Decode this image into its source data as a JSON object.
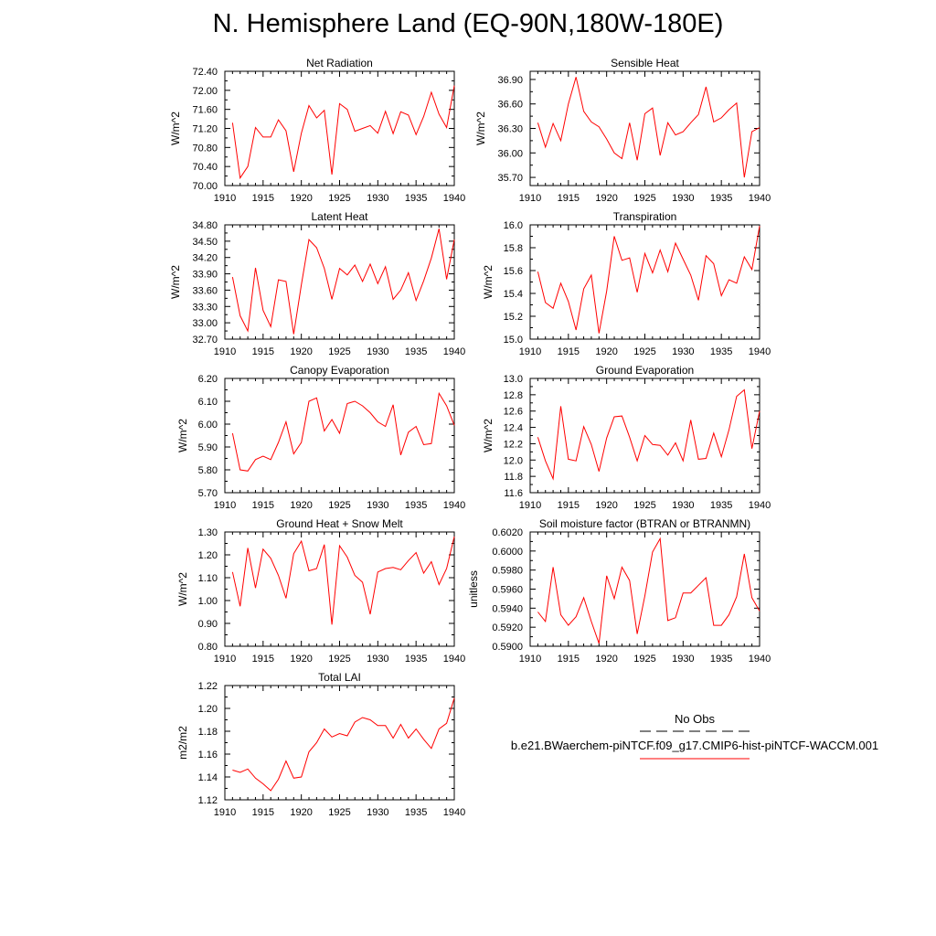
{
  "page": {
    "title": "N. Hemisphere Land (EQ-90N,180W-180E)"
  },
  "legend": {
    "obs_label": "No Obs",
    "case_label": "b.e21.BWaerchem-piNTCF.f09_g17.CMIP6-hist-piNTCF-WACCM.001",
    "obs_color": "#000000",
    "case_color": "#ff0000"
  },
  "chart_data": [
    {
      "type": "line",
      "title": "Net Radiation",
      "ylabel": "W/m^2",
      "xlabel": "",
      "xlim": [
        1910,
        1940
      ],
      "ylim": [
        70.0,
        72.4
      ],
      "xticks": [
        1910,
        1915,
        1920,
        1925,
        1930,
        1935,
        1940
      ],
      "yticks": [
        "70.00",
        "70.40",
        "70.80",
        "71.20",
        "71.60",
        "72.00",
        "72.40"
      ],
      "series": [
        {
          "color": "#ff0000",
          "x": [
            1911,
            1912,
            1913,
            1914,
            1915,
            1916,
            1917,
            1918,
            1919,
            1920,
            1921,
            1922,
            1923,
            1924,
            1925,
            1926,
            1927,
            1928,
            1929,
            1930,
            1931,
            1932,
            1933,
            1934,
            1935,
            1936,
            1937,
            1938,
            1939,
            1940
          ],
          "values": [
            71.32,
            70.16,
            70.4,
            71.22,
            71.02,
            71.02,
            71.38,
            71.15,
            70.29,
            71.1,
            71.68,
            71.42,
            71.58,
            70.23,
            71.72,
            71.6,
            71.14,
            71.2,
            71.26,
            71.1,
            71.56,
            71.09,
            71.55,
            71.48,
            71.07,
            71.45,
            71.96,
            71.5,
            71.22,
            72.1
          ]
        }
      ]
    },
    {
      "type": "line",
      "title": "Sensible Heat",
      "ylabel": "W/m^2",
      "xlabel": "",
      "xlim": [
        1910,
        1940
      ],
      "ylim": [
        35.6,
        37.0
      ],
      "xticks": [
        1910,
        1915,
        1920,
        1925,
        1930,
        1935,
        1940
      ],
      "yticks": [
        "35.70",
        "36.00",
        "36.30",
        "36.60",
        "36.90"
      ],
      "series": [
        {
          "color": "#ff0000",
          "x": [
            1911,
            1912,
            1913,
            1914,
            1915,
            1916,
            1917,
            1918,
            1919,
            1920,
            1921,
            1922,
            1923,
            1924,
            1925,
            1926,
            1927,
            1928,
            1929,
            1930,
            1931,
            1932,
            1933,
            1934,
            1935,
            1936,
            1937,
            1938,
            1939,
            1940
          ],
          "values": [
            36.37,
            36.07,
            36.36,
            36.15,
            36.6,
            36.93,
            36.51,
            36.38,
            36.32,
            36.17,
            36.0,
            35.93,
            36.37,
            35.91,
            36.48,
            36.55,
            35.97,
            36.37,
            36.22,
            36.26,
            36.37,
            36.47,
            36.81,
            36.38,
            36.43,
            36.53,
            36.61,
            35.7,
            36.26,
            36.31
          ]
        }
      ]
    },
    {
      "type": "line",
      "title": "Latent Heat",
      "ylabel": "W/m^2",
      "xlabel": "",
      "xlim": [
        1910,
        1940
      ],
      "ylim": [
        32.7,
        34.8
      ],
      "xticks": [
        1910,
        1915,
        1920,
        1925,
        1930,
        1935,
        1940
      ],
      "yticks": [
        "32.70",
        "33.00",
        "33.30",
        "33.60",
        "33.90",
        "34.20",
        "34.50",
        "34.80"
      ],
      "series": [
        {
          "color": "#ff0000",
          "x": [
            1911,
            1912,
            1913,
            1914,
            1915,
            1916,
            1917,
            1918,
            1919,
            1920,
            1921,
            1922,
            1923,
            1924,
            1925,
            1926,
            1927,
            1928,
            1929,
            1930,
            1931,
            1932,
            1933,
            1934,
            1935,
            1936,
            1937,
            1938,
            1939,
            1940
          ],
          "values": [
            33.84,
            33.13,
            32.85,
            34.01,
            33.23,
            32.93,
            33.79,
            33.76,
            32.79,
            33.7,
            34.53,
            34.38,
            34.0,
            33.43,
            34.0,
            33.88,
            34.06,
            33.76,
            34.08,
            33.72,
            34.03,
            33.43,
            33.6,
            33.92,
            33.41,
            33.77,
            34.19,
            34.73,
            33.8,
            34.53
          ]
        }
      ]
    },
    {
      "type": "line",
      "title": "Transpiration",
      "ylabel": "W/m^2",
      "xlabel": "",
      "xlim": [
        1910,
        1940
      ],
      "ylim": [
        15.0,
        16.0
      ],
      "xticks": [
        1910,
        1915,
        1920,
        1925,
        1930,
        1935,
        1940
      ],
      "yticks": [
        "15.0",
        "15.2",
        "15.4",
        "15.6",
        "15.8",
        "16.0"
      ],
      "series": [
        {
          "color": "#ff0000",
          "x": [
            1911,
            1912,
            1913,
            1914,
            1915,
            1916,
            1917,
            1918,
            1919,
            1920,
            1921,
            1922,
            1923,
            1924,
            1925,
            1926,
            1927,
            1928,
            1929,
            1930,
            1931,
            1932,
            1933,
            1934,
            1935,
            1936,
            1937,
            1938,
            1939,
            1940
          ],
          "values": [
            15.59,
            15.32,
            15.27,
            15.49,
            15.33,
            15.08,
            15.44,
            15.56,
            15.05,
            15.42,
            15.9,
            15.69,
            15.71,
            15.41,
            15.75,
            15.58,
            15.78,
            15.59,
            15.84,
            15.7,
            15.56,
            15.34,
            15.73,
            15.66,
            15.38,
            15.52,
            15.49,
            15.72,
            15.61,
            15.99
          ]
        }
      ]
    },
    {
      "type": "line",
      "title": "Canopy Evaporation",
      "ylabel": "W/m^2",
      "xlabel": "",
      "xlim": [
        1910,
        1940
      ],
      "ylim": [
        5.7,
        6.2
      ],
      "xticks": [
        1910,
        1915,
        1920,
        1925,
        1930,
        1935,
        1940
      ],
      "yticks": [
        "5.70",
        "5.80",
        "5.90",
        "6.00",
        "6.10",
        "6.20"
      ],
      "series": [
        {
          "color": "#ff0000",
          "x": [
            1911,
            1912,
            1913,
            1914,
            1915,
            1916,
            1917,
            1918,
            1919,
            1920,
            1921,
            1922,
            1923,
            1924,
            1925,
            1926,
            1927,
            1928,
            1929,
            1930,
            1931,
            1932,
            1933,
            1934,
            1935,
            1936,
            1937,
            1938,
            1939,
            1940
          ],
          "values": [
            5.96,
            5.8,
            5.795,
            5.845,
            5.86,
            5.845,
            5.92,
            6.01,
            5.87,
            5.92,
            6.1,
            6.115,
            5.97,
            6.02,
            5.96,
            6.09,
            6.1,
            6.08,
            6.05,
            6.01,
            5.99,
            6.085,
            5.865,
            5.965,
            5.99,
            5.91,
            5.915,
            6.135,
            6.08,
            5.995
          ]
        }
      ]
    },
    {
      "type": "line",
      "title": "Ground Evaporation",
      "ylabel": "W/m^2",
      "xlabel": "",
      "xlim": [
        1910,
        1940
      ],
      "ylim": [
        11.6,
        13.0
      ],
      "xticks": [
        1910,
        1915,
        1920,
        1925,
        1930,
        1935,
        1940
      ],
      "yticks": [
        "11.6",
        "11.8",
        "12.0",
        "12.2",
        "12.4",
        "12.6",
        "12.8",
        "13.0"
      ],
      "series": [
        {
          "color": "#ff0000",
          "x": [
            1911,
            1912,
            1913,
            1914,
            1915,
            1916,
            1917,
            1918,
            1919,
            1920,
            1921,
            1922,
            1923,
            1924,
            1925,
            1926,
            1927,
            1928,
            1929,
            1930,
            1931,
            1932,
            1933,
            1934,
            1935,
            1936,
            1937,
            1938,
            1939,
            1940
          ],
          "values": [
            12.28,
            11.99,
            11.77,
            12.66,
            12.01,
            11.99,
            12.41,
            12.19,
            11.86,
            12.27,
            12.53,
            12.54,
            12.28,
            11.99,
            12.3,
            12.19,
            12.18,
            12.06,
            12.21,
            11.99,
            12.49,
            12.01,
            12.02,
            12.33,
            12.04,
            12.37,
            12.78,
            12.86,
            12.14,
            12.6
          ]
        }
      ]
    },
    {
      "type": "line",
      "title": "Ground Heat + Snow Melt",
      "ylabel": "W/m^2",
      "xlabel": "",
      "xlim": [
        1910,
        1940
      ],
      "ylim": [
        0.8,
        1.3
      ],
      "xticks": [
        1910,
        1915,
        1920,
        1925,
        1930,
        1935,
        1940
      ],
      "yticks": [
        "0.80",
        "0.90",
        "1.00",
        "1.10",
        "1.20",
        "1.30"
      ],
      "series": [
        {
          "color": "#ff0000",
          "x": [
            1911,
            1912,
            1913,
            1914,
            1915,
            1916,
            1917,
            1918,
            1919,
            1920,
            1921,
            1922,
            1923,
            1924,
            1925,
            1926,
            1927,
            1928,
            1929,
            1930,
            1931,
            1932,
            1933,
            1934,
            1935,
            1936,
            1937,
            1938,
            1939,
            1940
          ],
          "values": [
            1.125,
            0.975,
            1.23,
            1.055,
            1.225,
            1.185,
            1.11,
            1.01,
            1.205,
            1.26,
            1.13,
            1.14,
            1.245,
            0.895,
            1.24,
            1.19,
            1.11,
            1.08,
            0.94,
            1.125,
            1.14,
            1.145,
            1.135,
            1.175,
            1.21,
            1.12,
            1.17,
            1.07,
            1.14,
            1.28
          ]
        }
      ]
    },
    {
      "type": "line",
      "title": "Soil moisture factor (BTRAN or BTRANMN)",
      "ylabel": "unitless",
      "xlabel": "",
      "xlim": [
        1910,
        1940
      ],
      "ylim": [
        0.59,
        0.602
      ],
      "xticks": [
        1910,
        1915,
        1920,
        1925,
        1930,
        1935,
        1940
      ],
      "yticks": [
        "0.5900",
        "0.5920",
        "0.5940",
        "0.5960",
        "0.5980",
        "0.6000",
        "0.6020"
      ],
      "series": [
        {
          "color": "#ff0000",
          "x": [
            1911,
            1912,
            1913,
            1914,
            1915,
            1916,
            1917,
            1918,
            1919,
            1920,
            1921,
            1922,
            1923,
            1924,
            1925,
            1926,
            1927,
            1928,
            1929,
            1930,
            1931,
            1932,
            1933,
            1934,
            1935,
            1936,
            1937,
            1938,
            1939,
            1940
          ],
          "values": [
            0.5936,
            0.5926,
            0.5983,
            0.5933,
            0.5922,
            0.5931,
            0.5951,
            0.5926,
            0.5903,
            0.5974,
            0.595,
            0.5983,
            0.5969,
            0.5913,
            0.5953,
            0.5999,
            0.6013,
            0.5927,
            0.593,
            0.5956,
            0.5956,
            0.5964,
            0.5972,
            0.5922,
            0.5922,
            0.5933,
            0.5952,
            0.5997,
            0.5951,
            0.5937
          ]
        }
      ]
    },
    {
      "type": "line",
      "title": "Total LAI",
      "ylabel": "m2/m2",
      "xlabel": "",
      "xlim": [
        1910,
        1940
      ],
      "ylim": [
        1.12,
        1.22
      ],
      "xticks": [
        1910,
        1915,
        1920,
        1925,
        1930,
        1935,
        1940
      ],
      "yticks": [
        "1.12",
        "1.14",
        "1.16",
        "1.18",
        "1.20",
        "1.22"
      ],
      "series": [
        {
          "color": "#ff0000",
          "x": [
            1911,
            1912,
            1913,
            1914,
            1915,
            1916,
            1917,
            1918,
            1919,
            1920,
            1921,
            1922,
            1923,
            1924,
            1925,
            1926,
            1927,
            1928,
            1929,
            1930,
            1931,
            1932,
            1933,
            1934,
            1935,
            1936,
            1937,
            1938,
            1939,
            1940
          ],
          "values": [
            1.146,
            1.144,
            1.147,
            1.139,
            1.134,
            1.128,
            1.138,
            1.154,
            1.139,
            1.14,
            1.162,
            1.17,
            1.182,
            1.175,
            1.178,
            1.176,
            1.188,
            1.192,
            1.19,
            1.185,
            1.185,
            1.174,
            1.186,
            1.174,
            1.182,
            1.173,
            1.165,
            1.182,
            1.187,
            1.209
          ]
        }
      ]
    }
  ]
}
